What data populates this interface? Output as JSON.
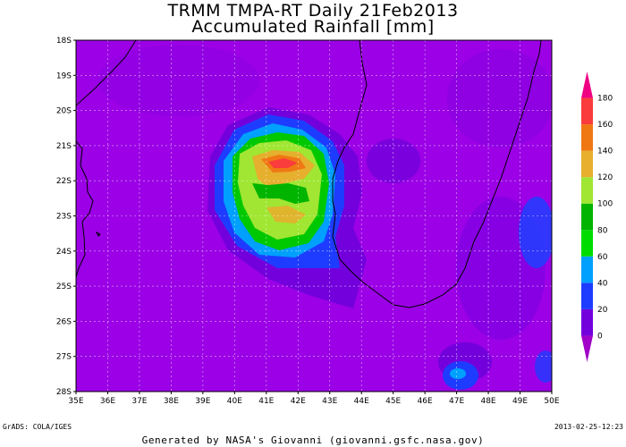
{
  "title_line1": "TRMM TMPA-RT Daily 21Feb2013",
  "title_line2": "Accumulated Rainfall [mm]",
  "footer_left": "GrADS: COLA/IGES",
  "footer_right": "2013-02-25-12:23",
  "credit": "Generated by NASA's Giovanni (giovanni.gsfc.nasa.gov)",
  "lat_labels": [
    "18S",
    "19S",
    "20S",
    "21S",
    "22S",
    "23S",
    "24S",
    "25S",
    "26S",
    "27S",
    "28S"
  ],
  "lon_labels": [
    "35E",
    "36E",
    "37E",
    "38E",
    "39E",
    "40E",
    "41E",
    "42E",
    "43E",
    "44E",
    "45E",
    "46E",
    "47E",
    "48E",
    "49E",
    "50E"
  ],
  "colorbar": {
    "labels": [
      "0",
      "20",
      "40",
      "60",
      "80",
      "100",
      "120",
      "140",
      "160",
      "180"
    ],
    "colors": [
      "#a000c8",
      "#7300dc",
      "#1e3cff",
      "#00a0ff",
      "#00dc00",
      "#00b400",
      "#a0e632",
      "#e6af2d",
      "#f07814",
      "#fa3c3c",
      "#f00082"
    ]
  },
  "map_extent": {
    "lon_min": 35,
    "lon_max": 50,
    "lat_min": -28,
    "lat_max": -18
  },
  "background_color": "#9b00e6"
}
